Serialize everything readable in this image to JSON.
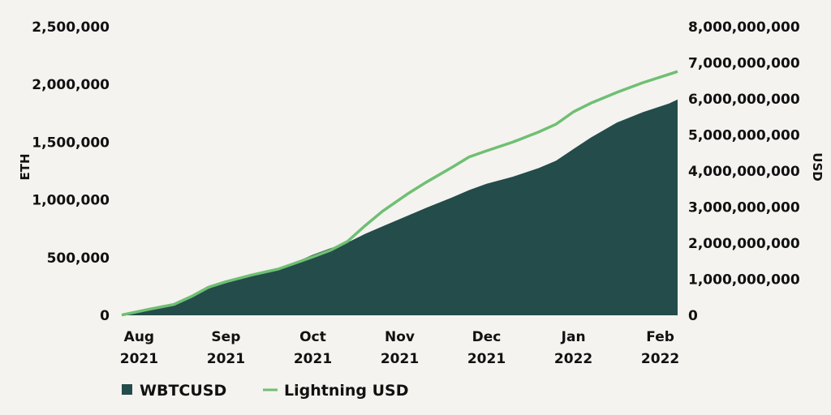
{
  "chart_data": {
    "type": "area",
    "title": "",
    "left_axis_label": "ETH",
    "right_axis_label": "USD",
    "left_ylim": [
      0,
      2500000
    ],
    "right_ylim": [
      0,
      8000000000
    ],
    "left_ticks": [
      {
        "value": 0,
        "label": "0"
      },
      {
        "value": 500000,
        "label": "500,000"
      },
      {
        "value": 1000000,
        "label": "1,000,000"
      },
      {
        "value": 1500000,
        "label": "1,500,000"
      },
      {
        "value": 2000000,
        "label": "2,000,000"
      },
      {
        "value": 2500000,
        "label": "2,500,000"
      }
    ],
    "right_ticks": [
      {
        "value": 0,
        "label": "0"
      },
      {
        "value": 1000000000,
        "label": "1,000,000,000"
      },
      {
        "value": 2000000000,
        "label": "2,000,000,000"
      },
      {
        "value": 3000000000,
        "label": "3,000,000,000"
      },
      {
        "value": 4000000000,
        "label": "4,000,000,000"
      },
      {
        "value": 5000000000,
        "label": "5,000,000,000"
      },
      {
        "value": 6000000000,
        "label": "6,000,000,000"
      },
      {
        "value": 7000000000,
        "label": "7,000,000,000"
      },
      {
        "value": 8000000000,
        "label": "8,000,000,000"
      }
    ],
    "x_domain": [
      0,
      6.4
    ],
    "x_ticks": [
      {
        "x": 0.2,
        "month": "Aug",
        "year": "2021"
      },
      {
        "x": 1.2,
        "month": "Sep",
        "year": "2021"
      },
      {
        "x": 2.2,
        "month": "Oct",
        "year": "2021"
      },
      {
        "x": 3.2,
        "month": "Nov",
        "year": "2021"
      },
      {
        "x": 4.2,
        "month": "Dec",
        "year": "2021"
      },
      {
        "x": 5.2,
        "month": "Jan",
        "year": "2022"
      },
      {
        "x": 6.2,
        "month": "Feb",
        "year": "2022"
      }
    ],
    "series": [
      {
        "name": "WBTCUSD",
        "kind": "area",
        "axis": "left",
        "color": "#234c4a",
        "x": [
          0.0,
          0.3,
          0.6,
          0.8,
          1.0,
          1.2,
          1.5,
          1.8,
          2.0,
          2.2,
          2.4,
          2.6,
          2.8,
          3.0,
          3.3,
          3.5,
          3.8,
          4.0,
          4.2,
          4.5,
          4.8,
          5.0,
          5.2,
          5.4,
          5.7,
          6.0,
          6.3,
          6.4
        ],
        "values": [
          5000,
          40000,
          85000,
          150000,
          230000,
          295000,
          355000,
          405000,
          460000,
          525000,
          580000,
          630000,
          705000,
          770000,
          865000,
          930000,
          1020000,
          1085000,
          1140000,
          1200000,
          1275000,
          1340000,
          1440000,
          1540000,
          1670000,
          1760000,
          1835000,
          1870000
        ]
      },
      {
        "name": "Lightning USD",
        "kind": "line",
        "axis": "right",
        "color": "#6fbf73",
        "x": [
          0.0,
          0.3,
          0.6,
          0.8,
          1.0,
          1.2,
          1.5,
          1.8,
          2.0,
          2.2,
          2.4,
          2.6,
          2.8,
          3.0,
          3.3,
          3.5,
          3.8,
          4.0,
          4.2,
          4.5,
          4.8,
          5.0,
          5.2,
          5.4,
          5.7,
          6.0,
          6.3,
          6.4
        ],
        "values": [
          10000000,
          160000000,
          300000000,
          520000000,
          780000000,
          930000000,
          1120000000,
          1280000000,
          1450000000,
          1620000000,
          1800000000,
          2050000000,
          2480000000,
          2880000000,
          3380000000,
          3680000000,
          4100000000,
          4390000000,
          4560000000,
          4800000000,
          5080000000,
          5300000000,
          5640000000,
          5880000000,
          6180000000,
          6450000000,
          6680000000,
          6760000000
        ]
      }
    ],
    "legend_position": "bottom-left"
  }
}
